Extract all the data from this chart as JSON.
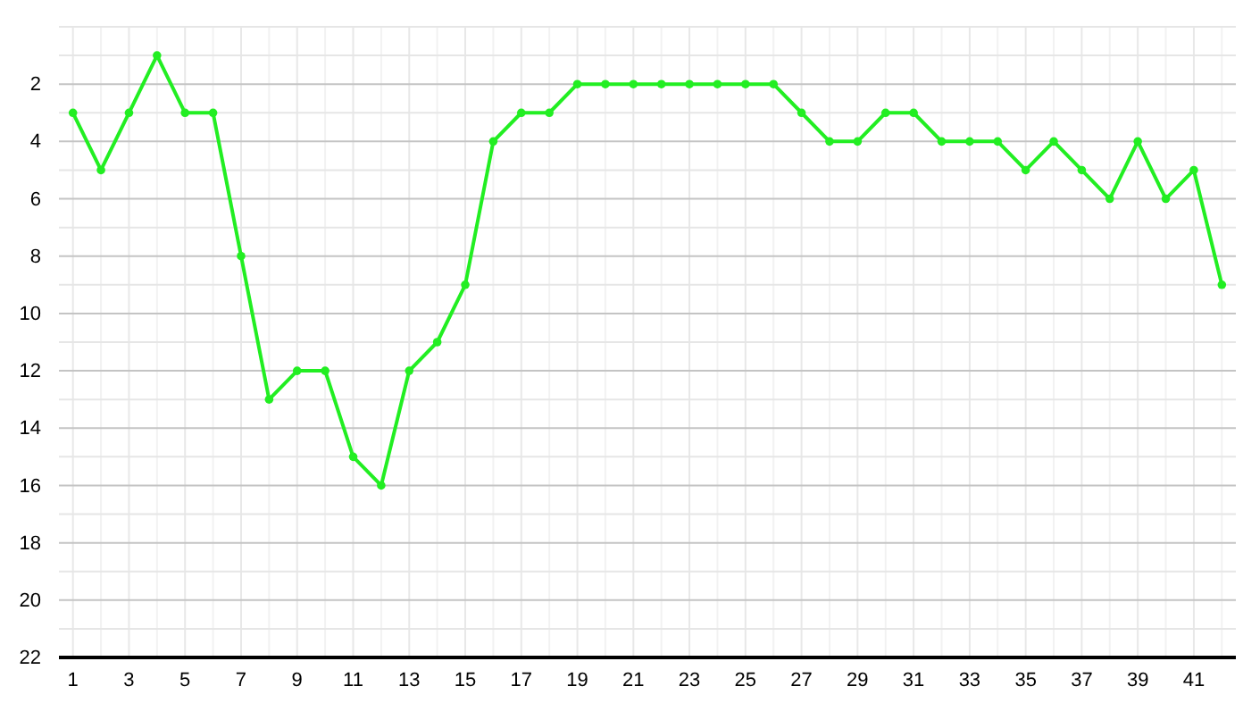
{
  "chart_data": {
    "type": "line",
    "x": [
      1,
      2,
      3,
      4,
      5,
      6,
      7,
      8,
      9,
      10,
      11,
      12,
      13,
      14,
      15,
      16,
      17,
      18,
      19,
      20,
      21,
      22,
      23,
      24,
      25,
      26,
      27,
      28,
      29,
      30,
      31,
      32,
      33,
      34,
      35,
      36,
      37,
      38,
      39,
      40,
      41,
      42
    ],
    "series": [
      {
        "color": "#22ee22",
        "values": [
          3,
          5,
          3,
          1,
          3,
          3,
          8,
          13,
          12,
          12,
          15,
          16,
          12,
          11,
          9,
          4,
          3,
          3,
          2,
          2,
          2,
          2,
          2,
          2,
          2,
          2,
          3,
          4,
          4,
          3,
          3,
          4,
          4,
          4,
          5,
          4,
          5,
          6,
          4,
          6,
          5,
          9
        ]
      }
    ],
    "xlim": [
      0.5,
      42.5
    ],
    "xticks": [
      1,
      {
        "value": 2,
        "label": null
      },
      3,
      {
        "value": 4,
        "label": null
      },
      5,
      {
        "value": 6,
        "label": null
      },
      7,
      {
        "value": 8,
        "label": null
      },
      9,
      {
        "value": 10,
        "label": null
      },
      11,
      {
        "value": 12,
        "label": null
      },
      13,
      {
        "value": 14,
        "label": null
      },
      15,
      {
        "value": 16,
        "label": null
      },
      17,
      {
        "value": 18,
        "label": null
      },
      19,
      {
        "value": 20,
        "label": null
      },
      21,
      {
        "value": 22,
        "label": null
      },
      23,
      {
        "value": 24,
        "label": null
      },
      25,
      {
        "value": 26,
        "label": null
      },
      27,
      {
        "value": 28,
        "label": null
      },
      29,
      {
        "value": 30,
        "label": null
      },
      31,
      {
        "value": 32,
        "label": null
      },
      33,
      {
        "value": 34,
        "label": null
      },
      35,
      {
        "value": 36,
        "label": null
      },
      37,
      {
        "value": 38,
        "label": null
      },
      39,
      {
        "value": 40,
        "label": null
      },
      41,
      {
        "value": 42,
        "label": null
      }
    ],
    "ylim": [
      22,
      0
    ],
    "yticks": [
      {
        "value": 0,
        "label": null
      },
      {
        "value": 1,
        "label": null
      },
      2,
      {
        "value": 3,
        "label": null
      },
      4,
      {
        "value": 5,
        "label": null
      },
      6,
      {
        "value": 7,
        "label": null
      },
      8,
      {
        "value": 9,
        "label": null
      },
      10,
      {
        "value": 11,
        "label": null
      },
      12,
      {
        "value": 13,
        "label": null
      },
      14,
      {
        "value": 15,
        "label": null
      },
      16,
      {
        "value": 17,
        "label": null
      },
      18,
      {
        "value": 19,
        "label": null
      },
      20,
      {
        "value": 21,
        "label": null
      },
      22
    ],
    "grid": true,
    "marker": "circle",
    "line_style": "solid"
  }
}
